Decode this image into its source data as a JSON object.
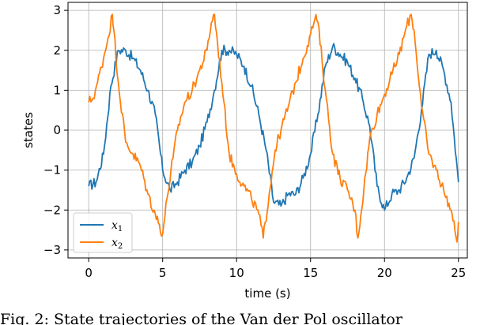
{
  "caption": "Fig. 2: State trajectories of the Van der Pol oscillator",
  "chart_data": {
    "type": "line",
    "xlabel": "time (s)",
    "ylabel": "states",
    "xlim": [
      -1.4,
      25.6
    ],
    "ylim": [
      -3.2,
      3.2
    ],
    "xticks": [
      0,
      5,
      10,
      15,
      20,
      25
    ],
    "xtick_labels": [
      "0",
      "5",
      "10",
      "15",
      "20",
      "25"
    ],
    "yticks": [
      -3,
      -2,
      -1,
      0,
      1,
      2,
      3
    ],
    "ytick_labels": [
      "−3",
      "−2",
      "−1",
      "0",
      "1",
      "2",
      "3"
    ],
    "grid": true,
    "legend_position": "lower-left",
    "series": [
      {
        "name": "x",
        "subscript": "1",
        "color": "#1f77b4",
        "x": [
          0,
          0.5,
          1,
          1.5,
          2,
          2.5,
          3,
          3.5,
          4,
          4.5,
          5,
          5.5,
          6,
          6.5,
          7,
          7.5,
          8,
          8.5,
          9,
          9.5,
          10,
          10.5,
          11,
          11.5,
          12,
          12.5,
          13,
          13.5,
          14,
          14.5,
          15,
          15.5,
          16,
          16.5,
          17,
          17.5,
          18,
          18.5,
          19,
          19.5,
          20,
          20.5,
          21,
          21.5,
          22,
          22.5,
          23,
          23.5,
          24,
          24.5,
          25
        ],
        "values": [
          -1.4,
          -1.3,
          -0.6,
          1.1,
          2.0,
          2.0,
          1.8,
          1.5,
          1.0,
          0.4,
          -1.0,
          -1.5,
          -1.3,
          -1.0,
          -0.8,
          -0.4,
          0.2,
          1.0,
          2.0,
          2.0,
          1.9,
          1.6,
          1.1,
          0.4,
          -0.5,
          -1.8,
          -1.9,
          -1.6,
          -1.6,
          -1.2,
          -0.6,
          0.4,
          1.6,
          2.1,
          1.9,
          1.7,
          1.3,
          0.8,
          0.1,
          -1.4,
          -2.0,
          -1.6,
          -1.5,
          -1.2,
          -0.7,
          0.5,
          1.9,
          2.0,
          1.5,
          0.7,
          -1.3
        ]
      },
      {
        "name": "x",
        "subscript": "2",
        "color": "#ff7f0e",
        "x": [
          0,
          0.3,
          0.6,
          1,
          1.3,
          1.6,
          1.7,
          2.0,
          2.5,
          3,
          3.5,
          4,
          4.5,
          5,
          5.3,
          5.7,
          6,
          6.5,
          7,
          7.5,
          8,
          8.3,
          8.5,
          9,
          9.5,
          10,
          10.5,
          11,
          11.5,
          11.8,
          12.2,
          12.6,
          13,
          13.5,
          14,
          14.5,
          15,
          15.3,
          15.5,
          16,
          16.5,
          17,
          17.5,
          18,
          18.2,
          18.6,
          19,
          19.5,
          20,
          20.5,
          21,
          21.5,
          21.8,
          22,
          22.5,
          23,
          23.5,
          24,
          24.5,
          24.9,
          25
        ],
        "values": [
          0.7,
          0.8,
          1.2,
          1.8,
          2.3,
          2.9,
          2.5,
          1.2,
          -0.3,
          -0.6,
          -0.9,
          -1.6,
          -2.1,
          -2.6,
          -1.7,
          -0.7,
          0.0,
          0.7,
          1.0,
          1.5,
          2.0,
          2.7,
          2.9,
          1.2,
          -0.6,
          -1.1,
          -1.4,
          -1.7,
          -2.1,
          -2.7,
          -1.6,
          -0.5,
          0.0,
          0.6,
          1.2,
          1.8,
          2.4,
          2.8,
          2.7,
          1.0,
          -0.6,
          -1.2,
          -1.5,
          -2.0,
          -2.7,
          -1.5,
          -0.2,
          0.4,
          0.9,
          1.4,
          1.9,
          2.6,
          2.9,
          2.5,
          0.6,
          -0.6,
          -1.0,
          -1.5,
          -2.0,
          -2.8,
          -2.3
        ]
      }
    ]
  }
}
